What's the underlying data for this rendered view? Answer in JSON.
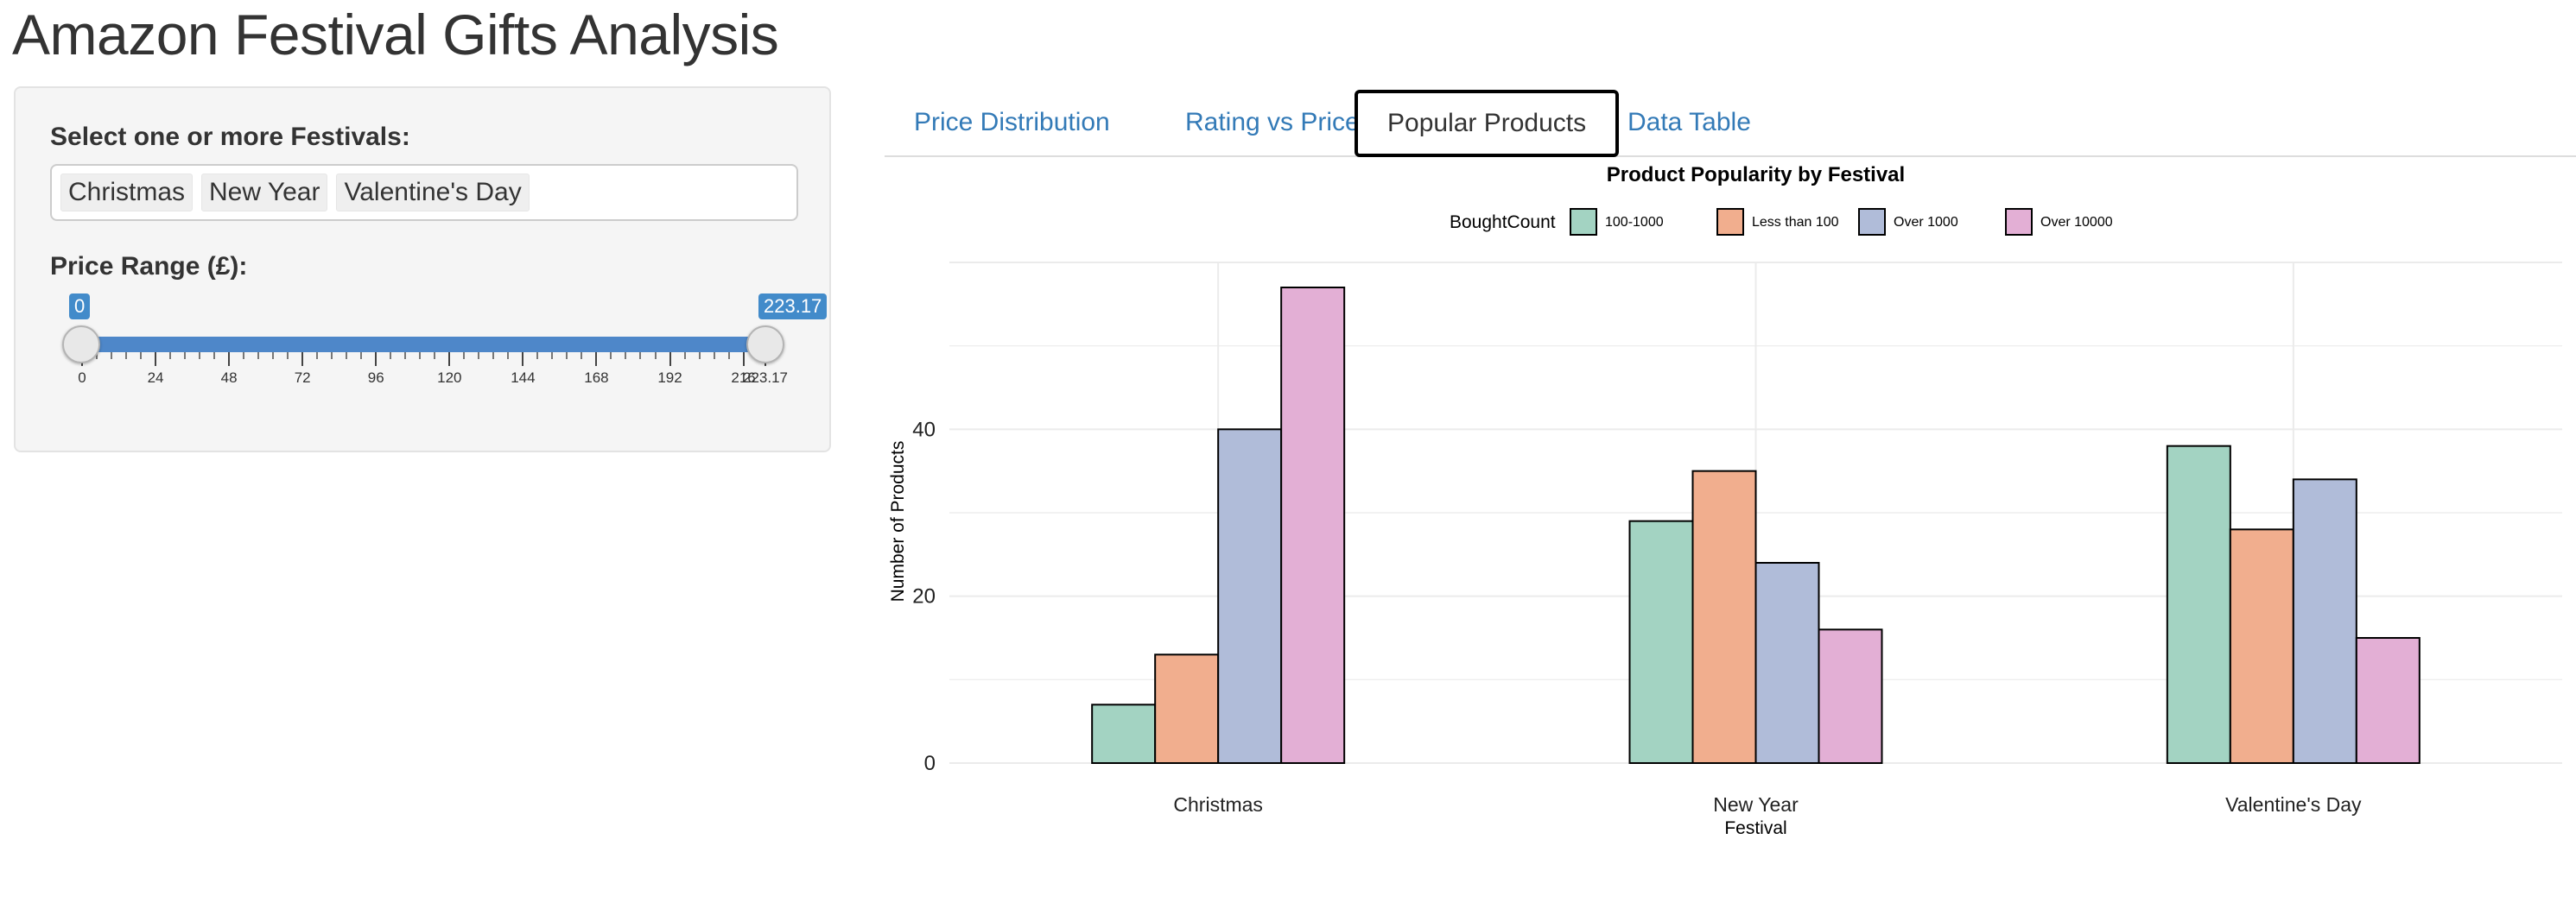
{
  "app": {
    "title": "Amazon Festival Gifts Analysis"
  },
  "sidebar": {
    "festival_label": "Select one or more Festivals:",
    "selected_festivals": [
      "Christmas",
      "New Year",
      "Valentine's Day"
    ],
    "price_label": "Price Range (£):",
    "price_min_badge": "0",
    "price_max_badge": "223.17",
    "price_range": [
      0,
      223.17
    ],
    "tick_labels": [
      "0",
      "24",
      "48",
      "72",
      "96",
      "120",
      "144",
      "168",
      "192",
      "216",
      "223.17"
    ],
    "tick_values": [
      0,
      24,
      48,
      72,
      96,
      120,
      144,
      168,
      192,
      216,
      223.17
    ]
  },
  "tabs": [
    {
      "label": "Price Distribution",
      "active": false
    },
    {
      "label": "Rating vs Price",
      "active": false
    },
    {
      "label": "Popular Products",
      "active": true
    },
    {
      "label": "Data Table",
      "active": false
    }
  ],
  "colors": {
    "accent": "#428bca",
    "tab_link": "#337ab7"
  },
  "chart_data": {
    "type": "bar",
    "title": "Product Popularity by Festival",
    "xlabel": "Festival",
    "ylabel": "Number of Products",
    "legend_title": "BoughtCount",
    "legend_position": "top",
    "categories": [
      "Christmas",
      "New Year",
      "Valentine's Day"
    ],
    "ylim": [
      0,
      60
    ],
    "yticks": [
      0,
      20,
      40
    ],
    "grid": true,
    "series": [
      {
        "name": "100-1000",
        "color": "#a3d3c2",
        "values": [
          7,
          29,
          38
        ]
      },
      {
        "name": "Less than 100",
        "color": "#f1ae8e",
        "values": [
          13,
          35,
          28
        ]
      },
      {
        "name": "Over 1000",
        "color": "#b0bcd9",
        "values": [
          40,
          24,
          34
        ]
      },
      {
        "name": "Over 10000",
        "color": "#e3afd5",
        "values": [
          57,
          16,
          15
        ]
      }
    ]
  }
}
